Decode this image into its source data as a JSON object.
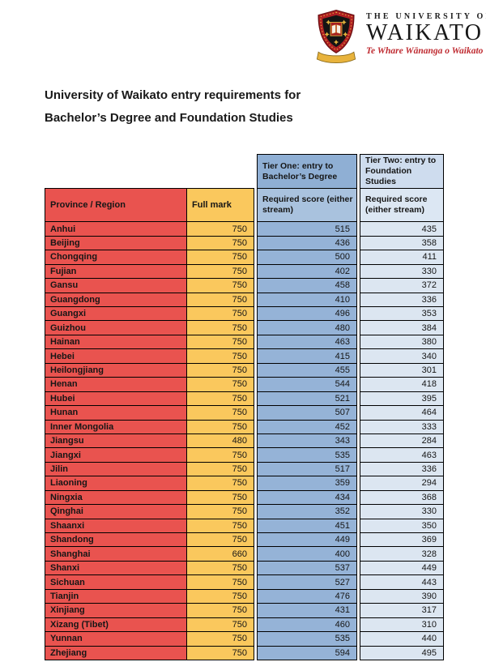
{
  "logo": {
    "line1": "THE UNIVERSITY OF",
    "line2": "WAIKATO",
    "motto": "Te Whare Wānanga o Waikato"
  },
  "title": {
    "line1": "University of Waikato entry requirements for",
    "line2": "Bachelor’s Degree and Foundation Studies"
  },
  "table": {
    "tier_one_header": "Tier One: entry to Bachelor’s Degree",
    "tier_two_header": "Tier Two: entry to Foundation Studies",
    "province_header": "Province / Region",
    "full_mark_header": "Full mark",
    "required_score_label": "Required score (either stream)",
    "rows": [
      {
        "province": "Anhui",
        "full_mark": "750",
        "tier_one": "515",
        "tier_two": "435"
      },
      {
        "province": "Beijing",
        "full_mark": "750",
        "tier_one": "436",
        "tier_two": "358"
      },
      {
        "province": "Chongqing",
        "full_mark": "750",
        "tier_one": "500",
        "tier_two": "411"
      },
      {
        "province": "Fujian",
        "full_mark": "750",
        "tier_one": "402",
        "tier_two": "330"
      },
      {
        "province": "Gansu",
        "full_mark": "750",
        "tier_one": "458",
        "tier_two": "372"
      },
      {
        "province": "Guangdong",
        "full_mark": "750",
        "tier_one": "410",
        "tier_two": "336"
      },
      {
        "province": "Guangxi",
        "full_mark": "750",
        "tier_one": "496",
        "tier_two": "353"
      },
      {
        "province": "Guizhou",
        "full_mark": "750",
        "tier_one": "480",
        "tier_two": "384"
      },
      {
        "province": "Hainan",
        "full_mark": "750",
        "tier_one": "463",
        "tier_two": "380"
      },
      {
        "province": "Hebei",
        "full_mark": "750",
        "tier_one": "415",
        "tier_two": "340"
      },
      {
        "province": "Heilongjiang",
        "full_mark": "750",
        "tier_one": "455",
        "tier_two": "301"
      },
      {
        "province": "Henan",
        "full_mark": "750",
        "tier_one": "544",
        "tier_two": "418"
      },
      {
        "province": "Hubei",
        "full_mark": "750",
        "tier_one": "521",
        "tier_two": "395"
      },
      {
        "province": "Hunan",
        "full_mark": "750",
        "tier_one": "507",
        "tier_two": "464"
      },
      {
        "province": "Inner Mongolia",
        "full_mark": "750",
        "tier_one": "452",
        "tier_two": "333"
      },
      {
        "province": "Jiangsu",
        "full_mark": "480",
        "tier_one": "343",
        "tier_two": "284"
      },
      {
        "province": "Jiangxi",
        "full_mark": "750",
        "tier_one": "535",
        "tier_two": "463"
      },
      {
        "province": "Jilin",
        "full_mark": "750",
        "tier_one": "517",
        "tier_two": "336"
      },
      {
        "province": "Liaoning",
        "full_mark": "750",
        "tier_one": "359",
        "tier_two": "294"
      },
      {
        "province": "Ningxia",
        "full_mark": "750",
        "tier_one": "434",
        "tier_two": "368"
      },
      {
        "province": "Qinghai",
        "full_mark": "750",
        "tier_one": "352",
        "tier_two": "330"
      },
      {
        "province": "Shaanxi",
        "full_mark": "750",
        "tier_one": "451",
        "tier_two": "350"
      },
      {
        "province": "Shandong",
        "full_mark": "750",
        "tier_one": "449",
        "tier_two": "369"
      },
      {
        "province": "Shanghai",
        "full_mark": "660",
        "tier_one": "400",
        "tier_two": "328"
      },
      {
        "province": "Shanxi",
        "full_mark": "750",
        "tier_one": "537",
        "tier_two": "449"
      },
      {
        "province": "Sichuan",
        "full_mark": "750",
        "tier_one": "527",
        "tier_two": "443"
      },
      {
        "province": "Tianjin",
        "full_mark": "750",
        "tier_one": "476",
        "tier_two": "390"
      },
      {
        "province": "Xinjiang",
        "full_mark": "750",
        "tier_one": "431",
        "tier_two": "317"
      },
      {
        "province": "Xizang (Tibet)",
        "full_mark": "750",
        "tier_one": "460",
        "tier_two": "310"
      },
      {
        "province": "Yunnan",
        "full_mark": "750",
        "tier_one": "535",
        "tier_two": "440"
      },
      {
        "province": "Zhejiang",
        "full_mark": "750",
        "tier_one": "594",
        "tier_two": "495"
      }
    ]
  },
  "colors": {
    "province_red": "#e9534f",
    "full_mark_yellow": "#fac85d",
    "tier_one_blue": "#95b3d7",
    "tier_two_blue": "#dce6f1",
    "motto_red": "#bf2b31",
    "border_black": "#000000"
  }
}
